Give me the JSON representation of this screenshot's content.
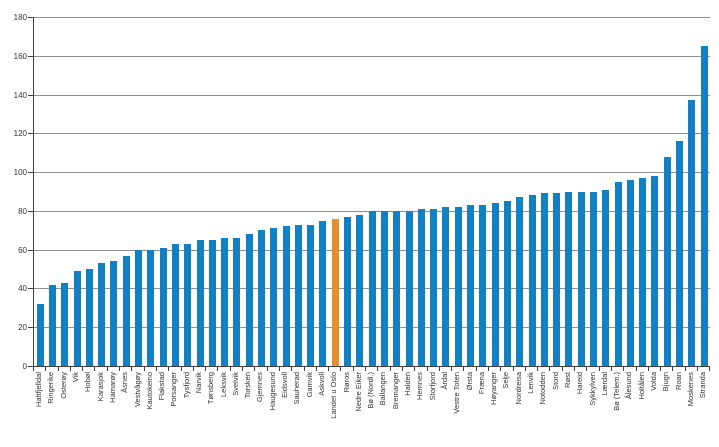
{
  "chart_data": {
    "type": "bar",
    "categories": [
      "Hattfjelldal",
      "Ringerike",
      "Osterøy",
      "Vik",
      "Hobøl",
      "Karasjok",
      "Hamarøy",
      "Åsnes",
      "Vestvågøy",
      "Kautokeino",
      "Flakstad",
      "Porsanger",
      "Tysfjord",
      "Narvik",
      "Tønsberg",
      "Leksvik",
      "Svelvik",
      "Torsken",
      "Gjemnes",
      "Haugesund",
      "Eidsvoll",
      "Sauherad",
      "Gamvik",
      "Askvoll",
      "Landet u Oslo",
      "Røros",
      "Nedre Eiker",
      "Bø (Nordl.)",
      "Ballangen",
      "Bremanger",
      "Halden",
      "Hemnes",
      "Storfjord",
      "Årdal",
      "Vestre Toten",
      "Ørsta",
      "Fræna",
      "Høyanger",
      "Selje",
      "Nordreisa",
      "Lenvik",
      "Notodden",
      "Stord",
      "Røst",
      "Hareid",
      "Sykkylven",
      "Lærdal",
      "Bø (Telem.)",
      "Ålesund",
      "Holtålen",
      "Volda",
      "Bjugn",
      "Roan",
      "Moskenes",
      "Stranda"
    ],
    "values": [
      32,
      42,
      43,
      49,
      50,
      53,
      54,
      57,
      60,
      60,
      61,
      63,
      63,
      65,
      65,
      66,
      66,
      68,
      70,
      71,
      72,
      73,
      73,
      75,
      76,
      77,
      78,
      80,
      80,
      80,
      80,
      81,
      81,
      82,
      82,
      83,
      83,
      84,
      85,
      87,
      88,
      89,
      89,
      90,
      90,
      90,
      91,
      95,
      96,
      97,
      98,
      108,
      116,
      137,
      165
    ],
    "highlight_category": "Landet u Oslo",
    "highlight_index": 24,
    "xlabel": "",
    "ylabel": "",
    "ylim": [
      0,
      180
    ],
    "yticks": [
      "0",
      "20",
      "40",
      "60",
      "80",
      "100",
      "120",
      "140",
      "160",
      "180"
    ],
    "ytick_step": 20,
    "grid": "horizontal",
    "legend_position": "none",
    "colors": {
      "bar": "#1280C4",
      "highlight": "#E2902C",
      "gridline": "#909090",
      "axis": "#404040",
      "text": "#333333",
      "background": "#FFFFFF"
    }
  }
}
